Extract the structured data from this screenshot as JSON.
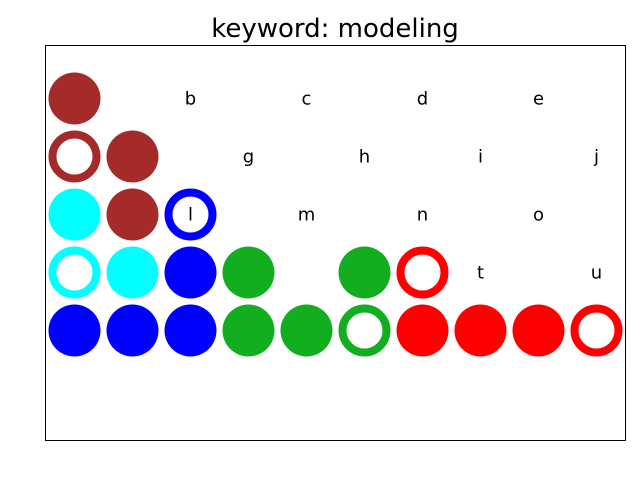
{
  "chart_data": {
    "type": "scatter",
    "title": "keyword: modeling",
    "xlabel": "",
    "ylabel": "",
    "xlim": [
      0,
      10
    ],
    "ylim": [
      0,
      6.8
    ],
    "xticks": [],
    "yticks": [],
    "grid": false,
    "legend": "none",
    "colors": {
      "brown": "#a52a2a",
      "cyan": "#00ffff",
      "blue": "#0000ff",
      "green": "#13ad20",
      "red": "#ff0000"
    },
    "points": [
      {
        "col": 0,
        "row": 5,
        "color": "brown",
        "fill": "solid"
      },
      {
        "col": 0,
        "row": 4,
        "color": "brown",
        "fill": "hollow"
      },
      {
        "col": 1,
        "row": 4,
        "color": "brown",
        "fill": "solid"
      },
      {
        "col": 0,
        "row": 3,
        "color": "cyan",
        "fill": "solid"
      },
      {
        "col": 1,
        "row": 3,
        "color": "brown",
        "fill": "solid"
      },
      {
        "col": 2,
        "row": 3,
        "color": "blue",
        "fill": "hollow"
      },
      {
        "col": 0,
        "row": 2,
        "color": "cyan",
        "fill": "hollow"
      },
      {
        "col": 1,
        "row": 2,
        "color": "cyan",
        "fill": "solid"
      },
      {
        "col": 2,
        "row": 2,
        "color": "blue",
        "fill": "solid"
      },
      {
        "col": 3,
        "row": 2,
        "color": "green",
        "fill": "solid"
      },
      {
        "col": 5,
        "row": 2,
        "color": "green",
        "fill": "solid"
      },
      {
        "col": 6,
        "row": 2,
        "color": "red",
        "fill": "hollow"
      },
      {
        "col": 0,
        "row": 1,
        "color": "blue",
        "fill": "solid"
      },
      {
        "col": 1,
        "row": 1,
        "color": "blue",
        "fill": "solid"
      },
      {
        "col": 2,
        "row": 1,
        "color": "blue",
        "fill": "solid"
      },
      {
        "col": 3,
        "row": 1,
        "color": "green",
        "fill": "solid"
      },
      {
        "col": 4,
        "row": 1,
        "color": "green",
        "fill": "solid"
      },
      {
        "col": 5,
        "row": 1,
        "color": "green",
        "fill": "hollow"
      },
      {
        "col": 6,
        "row": 1,
        "color": "red",
        "fill": "solid"
      },
      {
        "col": 7,
        "row": 1,
        "color": "red",
        "fill": "solid"
      },
      {
        "col": 8,
        "row": 1,
        "color": "red",
        "fill": "solid"
      },
      {
        "col": 9,
        "row": 1,
        "color": "red",
        "fill": "hollow"
      }
    ],
    "letters": [
      {
        "text": "b",
        "x": 2.5,
        "row": 5
      },
      {
        "text": "c",
        "x": 4.5,
        "row": 5
      },
      {
        "text": "d",
        "x": 6.5,
        "row": 5
      },
      {
        "text": "e",
        "x": 8.5,
        "row": 5
      },
      {
        "text": "g",
        "x": 3.5,
        "row": 4
      },
      {
        "text": "h",
        "x": 5.5,
        "row": 4
      },
      {
        "text": "i",
        "x": 7.5,
        "row": 4
      },
      {
        "text": "j",
        "x": 9.5,
        "row": 4
      },
      {
        "text": "l",
        "x": 2.5,
        "row": 3
      },
      {
        "text": "m",
        "x": 4.5,
        "row": 3
      },
      {
        "text": "n",
        "x": 6.5,
        "row": 3
      },
      {
        "text": "o",
        "x": 8.5,
        "row": 3
      },
      {
        "text": "t",
        "x": 7.5,
        "row": 2
      },
      {
        "text": "u",
        "x": 9.5,
        "row": 2
      }
    ]
  }
}
